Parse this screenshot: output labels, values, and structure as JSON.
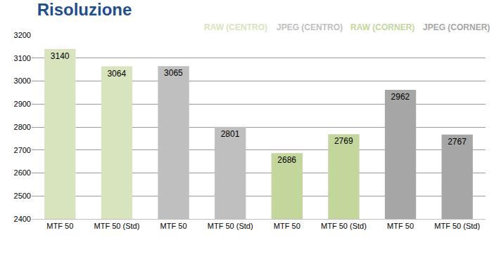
{
  "chart_data": {
    "type": "bar",
    "title": "Risoluzione",
    "categories": [
      "MTF 50",
      "MTF 50 (Std)",
      "MTF 50",
      "MTF 50 (Std)",
      "MTF 50",
      "MTF 50 (Std)",
      "MTF 50",
      "MTF 50 (Std)"
    ],
    "series": [
      {
        "name": "RAW (CENTRO)",
        "color": "#d7e4bd",
        "values": [
          3140,
          3064,
          null,
          null,
          null,
          null,
          null,
          null
        ]
      },
      {
        "name": "JPEG (CENTRO)",
        "color": "#bfbfbf",
        "values": [
          null,
          null,
          3065,
          2801,
          null,
          null,
          null,
          null
        ]
      },
      {
        "name": "RAW (CORNER)",
        "color": "#c3d69b",
        "values": [
          null,
          null,
          null,
          null,
          2686,
          2769,
          null,
          null
        ]
      },
      {
        "name": "JPEG (CORNER)",
        "color": "#a6a6a6",
        "values": [
          null,
          null,
          null,
          null,
          null,
          null,
          2962,
          2767
        ]
      }
    ],
    "ylim": [
      2400,
      3200
    ],
    "yticks": [
      2400,
      2500,
      2600,
      2700,
      2800,
      2900,
      3000,
      3100,
      3200
    ],
    "grid": true,
    "legend": "top right",
    "data_labels": true
  }
}
